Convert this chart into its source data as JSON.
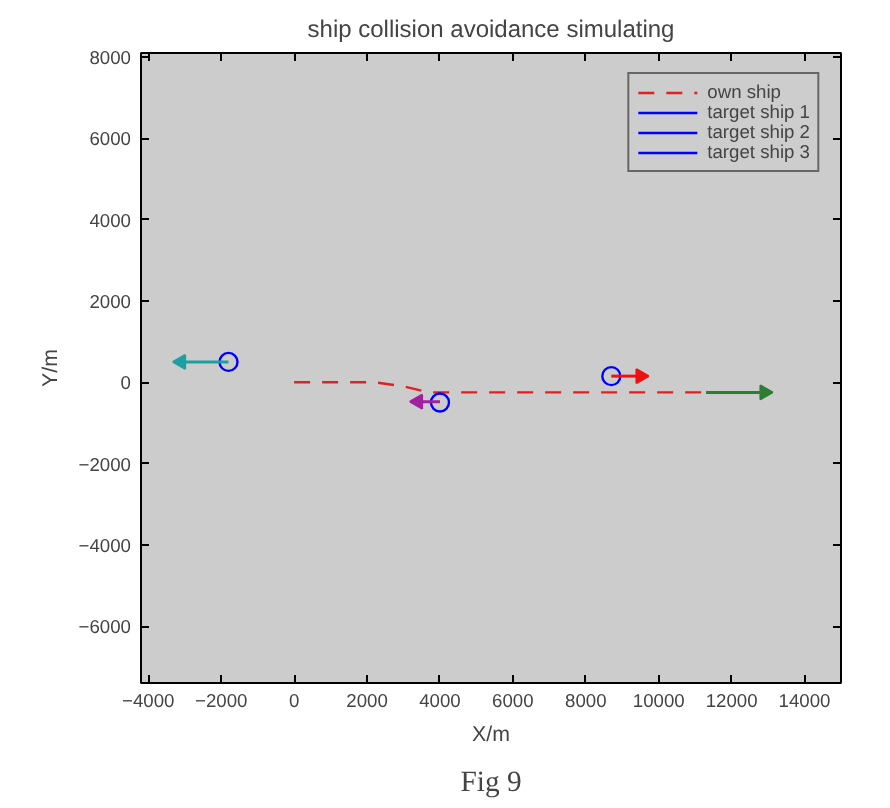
{
  "chart_data": {
    "type": "line",
    "title": "ship collision avoidance simulating",
    "xlabel": "X/m",
    "ylabel": "Y/m",
    "xlim": [
      -4200,
      15000
    ],
    "ylim": [
      -7400,
      8100
    ],
    "xticks": [
      -4000,
      -2000,
      0,
      2000,
      4000,
      6000,
      8000,
      10000,
      12000,
      14000
    ],
    "yticks": [
      -6000,
      -4000,
      -2000,
      0,
      2000,
      4000,
      6000,
      8000
    ],
    "grid": false,
    "legend": "top right",
    "annotations": [
      "Fig 9"
    ],
    "series": [
      {
        "name": "own ship",
        "color": "#dd2222",
        "line_style": "dashed",
        "x": [
          0,
          2200,
          3000,
          3700,
          11300
        ],
        "values": [
          0,
          0,
          -100,
          -250,
          -250
        ]
      },
      {
        "name": "target ship 1",
        "color": "#0000ff",
        "marker": "circle",
        "x": [
          -1800
        ],
        "values": [
          500
        ]
      },
      {
        "name": "target ship 2",
        "color": "#0000ff",
        "marker": "circle",
        "x": [
          4000
        ],
        "values": [
          -500
        ]
      },
      {
        "name": "target ship 3",
        "color": "#0000ff",
        "marker": "circle",
        "x": [
          8700
        ],
        "values": [
          150
        ]
      },
      {
        "color": "#1fa0a0",
        "x": [
          -1800,
          -3100
        ],
        "values": [
          500,
          500
        ]
      },
      {
        "color": "#a020a0",
        "x": [
          4000,
          3400
        ],
        "values": [
          -480,
          -480
        ]
      },
      {
        "color": "#ee1111",
        "x": [
          8700,
          9500
        ],
        "values": [
          150,
          150
        ]
      },
      {
        "color": "#2e7d32",
        "x": [
          11300,
          12900
        ],
        "values": [
          -250,
          -250
        ]
      }
    ]
  }
}
